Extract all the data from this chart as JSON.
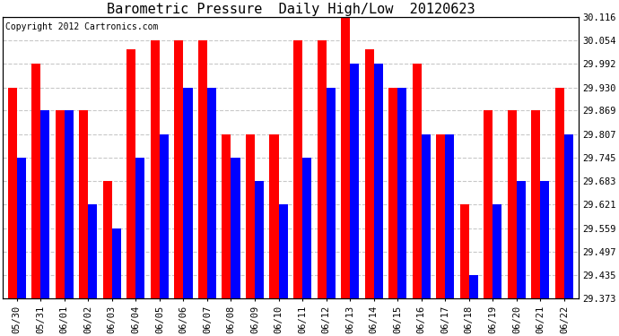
{
  "title": "Barometric Pressure  Daily High/Low  20120623",
  "copyright": "Copyright 2012 Cartronics.com",
  "ylim": [
    29.373,
    30.116
  ],
  "yticks": [
    29.373,
    29.435,
    29.497,
    29.559,
    29.621,
    29.683,
    29.745,
    29.807,
    29.869,
    29.93,
    29.992,
    30.054,
    30.116
  ],
  "background_color": "#ffffff",
  "grid_color": "#c8c8c8",
  "dates": [
    "05/30",
    "05/31",
    "06/01",
    "06/02",
    "06/03",
    "06/04",
    "06/05",
    "06/06",
    "06/07",
    "06/08",
    "06/09",
    "06/10",
    "06/11",
    "06/12",
    "06/13",
    "06/14",
    "06/15",
    "06/16",
    "06/17",
    "06/18",
    "06/19",
    "06/20",
    "06/21",
    "06/22"
  ],
  "highs": [
    29.93,
    29.992,
    29.869,
    29.869,
    29.683,
    30.03,
    30.054,
    30.054,
    30.054,
    29.807,
    29.807,
    29.807,
    30.054,
    30.054,
    30.116,
    30.03,
    29.93,
    29.992,
    29.807,
    29.621,
    29.869,
    29.869,
    29.869,
    29.93
  ],
  "lows": [
    29.745,
    29.869,
    29.869,
    29.621,
    29.559,
    29.745,
    29.807,
    29.93,
    29.93,
    29.745,
    29.683,
    29.621,
    29.745,
    29.93,
    29.992,
    29.992,
    29.93,
    29.807,
    29.807,
    29.435,
    29.621,
    29.683,
    29.683,
    29.807
  ],
  "high_color": "#ff0000",
  "low_color": "#0000ff",
  "title_fontsize": 11,
  "tick_fontsize": 7.5,
  "copyright_fontsize": 7,
  "bar_width": 0.38,
  "figwidth": 6.9,
  "figheight": 3.75,
  "dpi": 100
}
